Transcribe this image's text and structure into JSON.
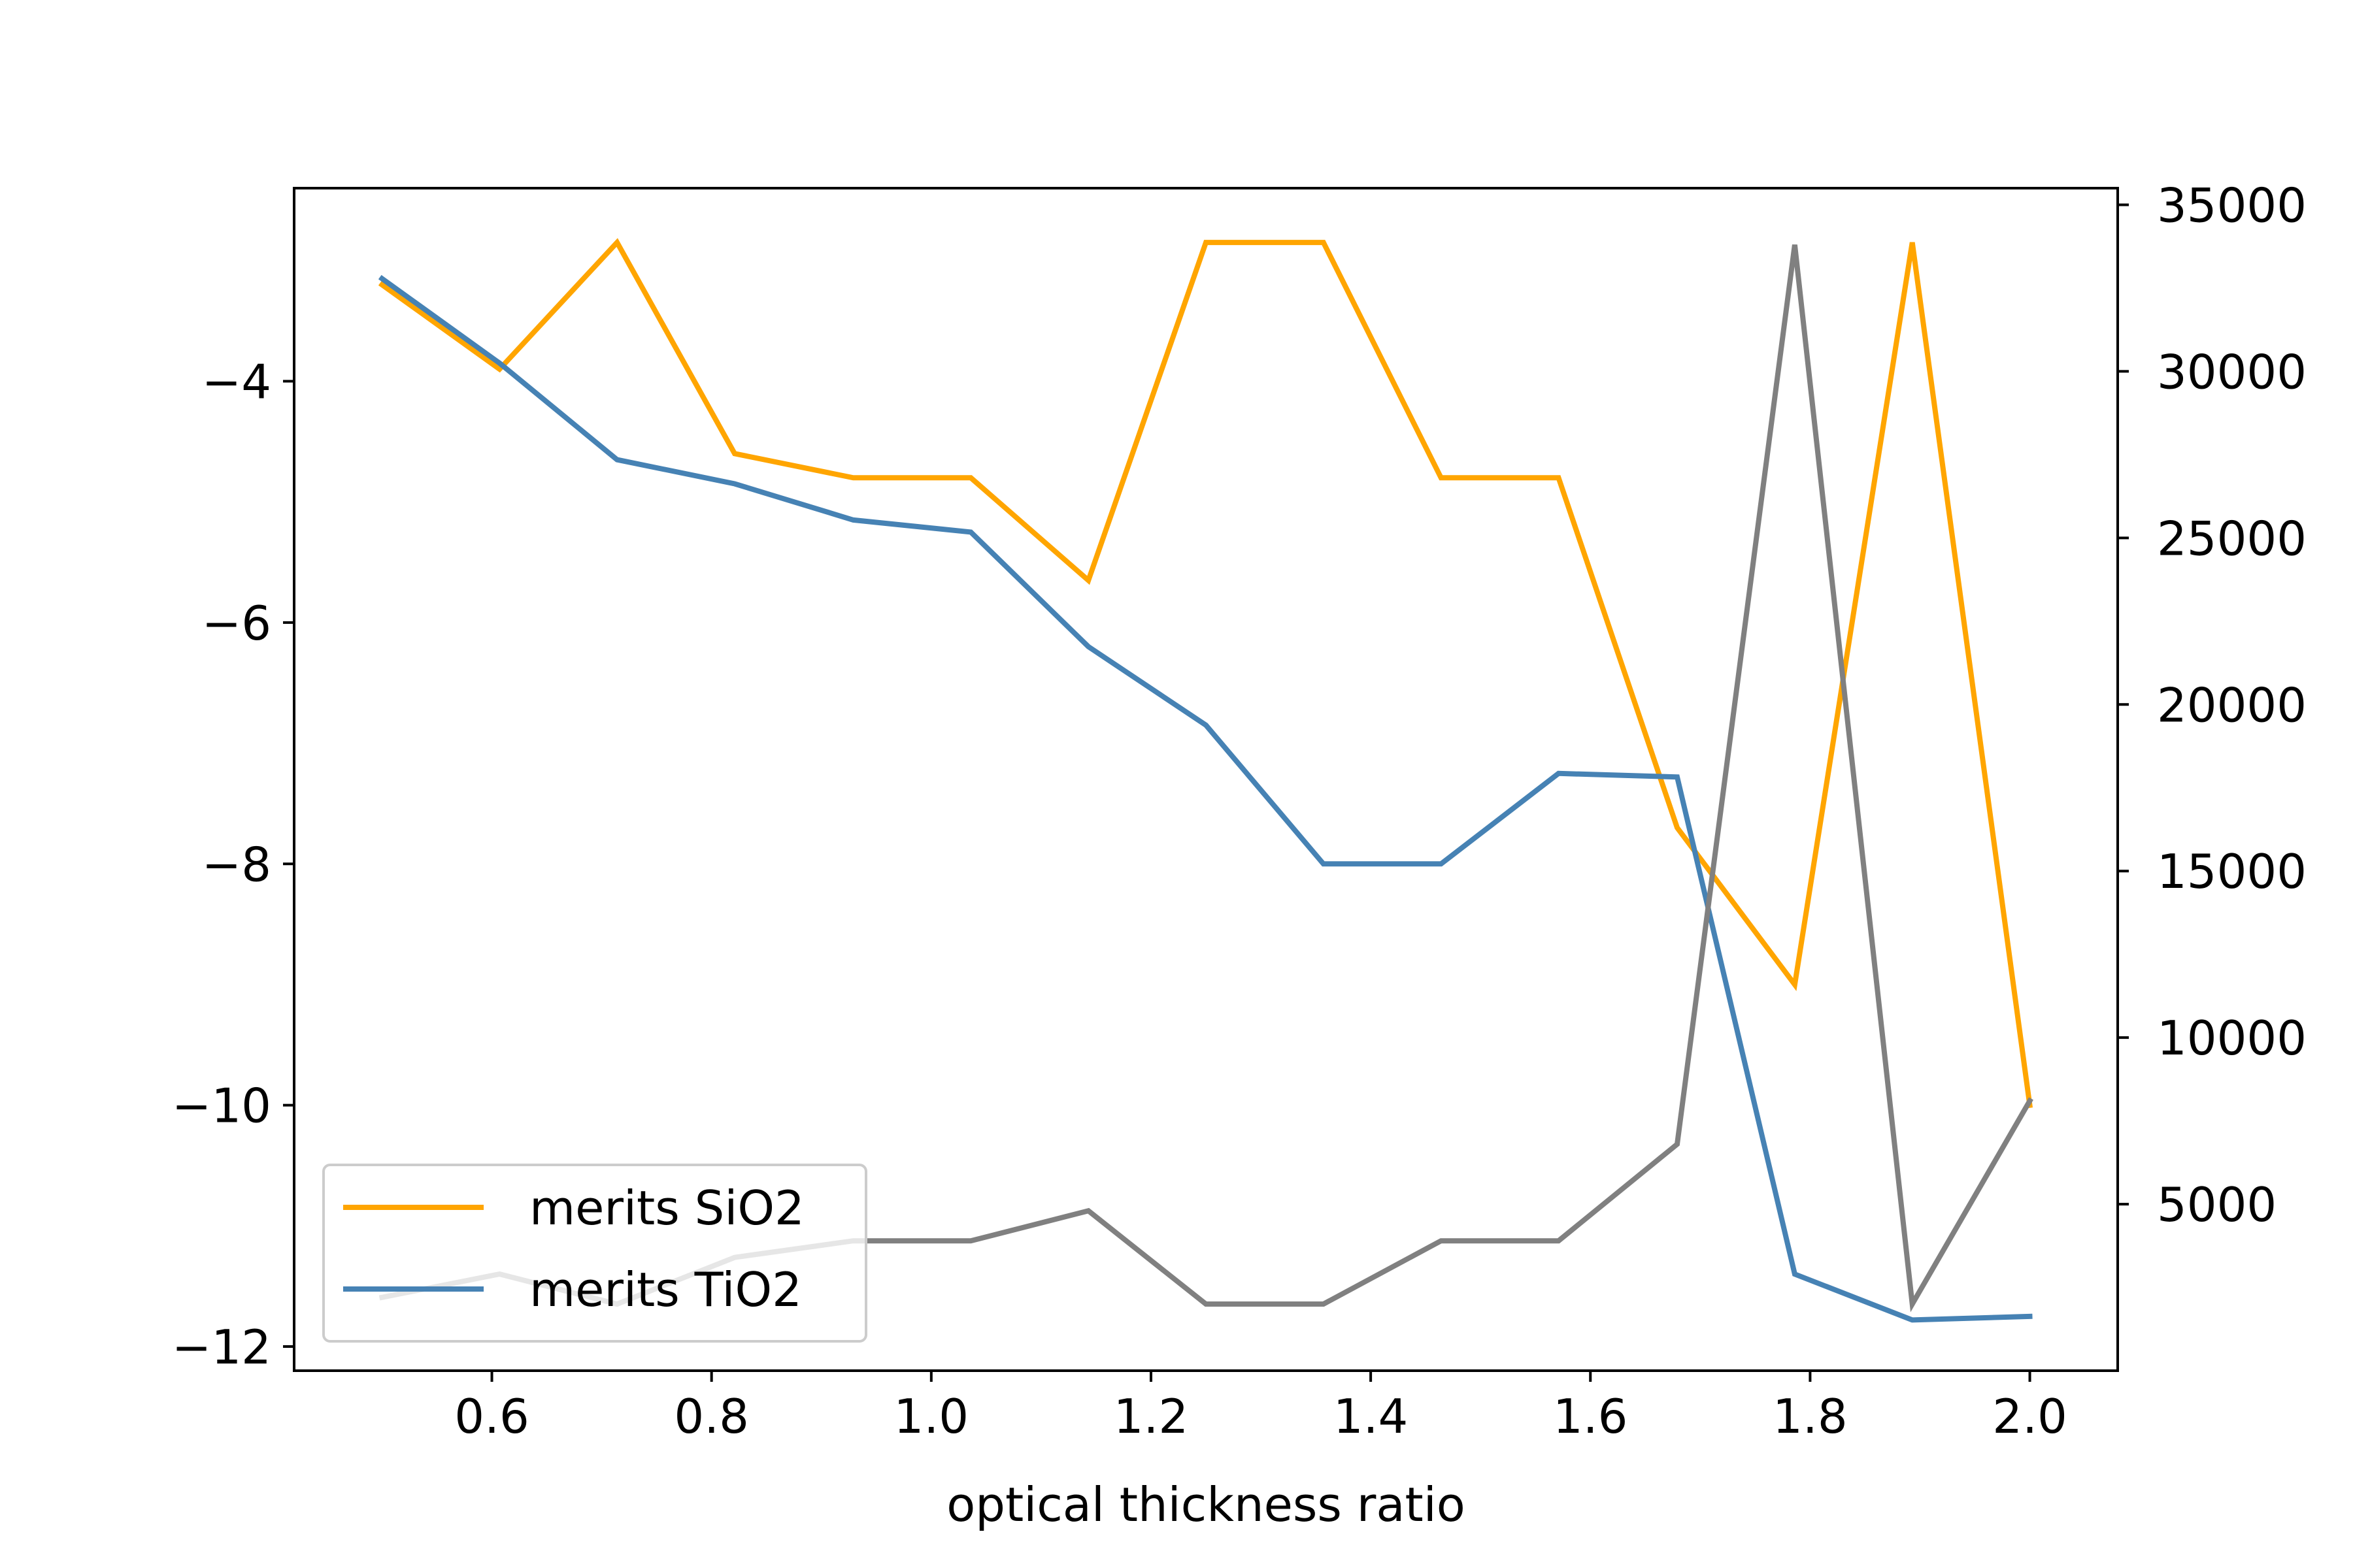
{
  "chart_data": {
    "type": "line",
    "xlabel": "optical thickness ratio",
    "ylabel": "",
    "y2label": "",
    "xlim": [
      0.42,
      2.08
    ],
    "ylim": [
      -12.2,
      -2.4
    ],
    "y2lim": [
      0,
      35500
    ],
    "x_ticks": [
      0.6,
      0.8,
      1.0,
      1.2,
      1.4,
      1.6,
      1.8,
      2.0
    ],
    "x_tick_labels": [
      "0.6",
      "0.8",
      "1.0",
      "1.2",
      "1.4",
      "1.6",
      "1.8",
      "2.0"
    ],
    "y_ticks": [
      -12,
      -10,
      -8,
      -6,
      -4
    ],
    "y_tick_labels": [
      "−12",
      "−10",
      "−8",
      "−6",
      "−4"
    ],
    "y2_ticks": [
      5000,
      10000,
      15000,
      20000,
      25000,
      30000,
      35000
    ],
    "y2_tick_labels": [
      "5000",
      "10000",
      "15000",
      "20000",
      "25000",
      "30000",
      "35000"
    ],
    "x": [
      0.5,
      0.607,
      0.714,
      0.821,
      0.929,
      1.036,
      1.143,
      1.25,
      1.357,
      1.464,
      1.571,
      1.679,
      1.786,
      1.893,
      2.0
    ],
    "series": [
      {
        "name": "merits SiO2",
        "axis": "left",
        "color": "#ffa500",
        "values": [
          -3.2,
          -3.9,
          -2.85,
          -4.6,
          -4.8,
          -4.8,
          -5.65,
          -2.85,
          -2.85,
          -4.8,
          -4.8,
          -7.7,
          -9.0,
          -2.85,
          -10.0
        ]
      },
      {
        "name": "merits TiO2",
        "axis": "left",
        "color": "#4682b4",
        "values": [
          -3.15,
          -3.85,
          -4.65,
          -4.85,
          -5.15,
          -5.25,
          -6.2,
          -6.85,
          -8.0,
          -8.0,
          -7.25,
          -7.28,
          -11.4,
          -11.78,
          -11.75
        ]
      },
      {
        "name": "",
        "axis": "right",
        "color": "#808080",
        "values": [
          2200,
          2900,
          2000,
          3400,
          3900,
          3900,
          4800,
          2000,
          2000,
          3900,
          3900,
          6800,
          33800,
          2000,
          8100
        ]
      }
    ],
    "legend": {
      "placement": "lower-left",
      "entries": [
        "merits SiO2",
        "merits TiO2"
      ]
    },
    "grid": false
  }
}
